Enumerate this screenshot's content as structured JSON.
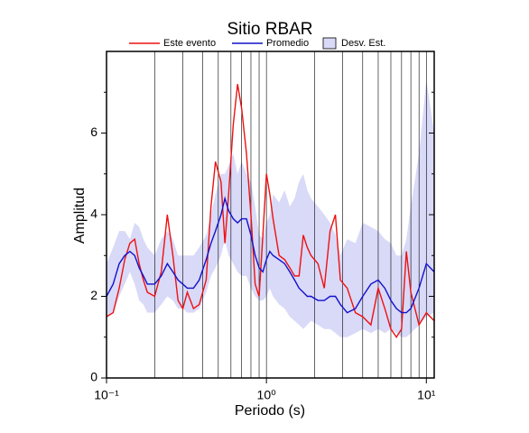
{
  "chart_data": {
    "type": "line",
    "title": "Sitio RBAR",
    "xlabel": "Periodo (s)",
    "ylabel": "Amplitud",
    "xscale": "log",
    "xlim": [
      0.1,
      11.2
    ],
    "ylim": [
      0,
      8
    ],
    "xticks": [
      {
        "value": 0.1,
        "label": "10⁻¹"
      },
      {
        "value": 1,
        "label": "10⁰"
      },
      {
        "value": 10,
        "label": "10¹"
      }
    ],
    "xgrid": [
      0.2,
      0.3,
      0.4,
      0.5,
      0.6,
      0.7,
      0.8,
      0.9,
      2,
      3,
      4,
      5,
      6,
      7,
      8,
      9
    ],
    "yticks": [
      0,
      2,
      4,
      6
    ],
    "yminorticks": [
      1,
      3,
      5,
      7
    ],
    "x": [
      0.1,
      0.11,
      0.12,
      0.13,
      0.14,
      0.15,
      0.16,
      0.17,
      0.18,
      0.2,
      0.22,
      0.24,
      0.26,
      0.28,
      0.3,
      0.32,
      0.35,
      0.38,
      0.42,
      0.45,
      0.48,
      0.52,
      0.55,
      0.58,
      0.62,
      0.66,
      0.7,
      0.75,
      0.8,
      0.85,
      0.9,
      0.95,
      1.0,
      1.05,
      1.1,
      1.2,
      1.3,
      1.4,
      1.5,
      1.6,
      1.7,
      1.8,
      1.9,
      2.1,
      2.3,
      2.5,
      2.7,
      2.9,
      3.2,
      3.6,
      4.0,
      4.5,
      5.0,
      5.5,
      6.0,
      6.5,
      7.0,
      7.5,
      8.0,
      9.0,
      10,
      11.2
    ],
    "series": [
      {
        "name": "Este evento",
        "color": "#ee1111",
        "values": [
          1.5,
          1.6,
          2.2,
          2.9,
          3.3,
          3.4,
          2.8,
          2.4,
          2.1,
          2.0,
          2.6,
          4.0,
          3.0,
          1.9,
          1.7,
          2.1,
          1.7,
          1.8,
          2.4,
          4.2,
          5.3,
          4.8,
          3.3,
          4.5,
          6.2,
          7.2,
          6.6,
          5.5,
          4.0,
          2.3,
          2.0,
          3.5,
          5.0,
          4.5,
          3.9,
          3.0,
          2.9,
          2.7,
          2.5,
          2.5,
          3.5,
          3.2,
          3.0,
          2.8,
          2.2,
          3.6,
          4.0,
          2.4,
          2.2,
          1.6,
          1.5,
          1.3,
          2.2,
          1.7,
          1.2,
          1.0,
          1.2,
          3.1,
          2.1,
          1.3,
          1.6,
          1.4
        ]
      },
      {
        "name": "Promedio",
        "color": "#1111cc",
        "values": [
          2.0,
          2.3,
          2.8,
          3.0,
          3.1,
          3.0,
          2.7,
          2.5,
          2.3,
          2.3,
          2.5,
          2.8,
          2.6,
          2.4,
          2.3,
          2.2,
          2.2,
          2.4,
          2.9,
          3.3,
          3.6,
          4.0,
          4.4,
          4.1,
          3.9,
          3.8,
          3.9,
          3.9,
          3.5,
          3.0,
          2.7,
          2.6,
          2.9,
          3.1,
          3.0,
          2.9,
          2.8,
          2.6,
          2.4,
          2.2,
          2.1,
          2.0,
          2.0,
          1.9,
          1.9,
          2.0,
          2.0,
          1.8,
          1.6,
          1.7,
          2.0,
          2.3,
          2.4,
          2.2,
          1.9,
          1.7,
          1.6,
          1.6,
          1.7,
          2.2,
          2.8,
          2.6
        ]
      },
      {
        "name": "Desv. Est.",
        "color": "#d9d9f8",
        "upper": [
          2.8,
          3.2,
          3.6,
          3.6,
          3.4,
          3.8,
          3.7,
          3.4,
          3.2,
          3.0,
          3.4,
          3.6,
          3.4,
          3.0,
          3.0,
          3.0,
          3.0,
          3.2,
          3.5,
          4.0,
          4.5,
          5.0,
          5.0,
          5.2,
          5.5,
          5.0,
          5.3,
          5.0,
          4.8,
          4.2,
          3.5,
          3.4,
          3.8,
          4.0,
          4.5,
          4.3,
          4.6,
          4.2,
          4.4,
          4.8,
          5.0,
          4.6,
          4.4,
          4.2,
          4.0,
          3.8,
          3.5,
          3.0,
          3.4,
          3.3,
          3.8,
          3.7,
          3.6,
          3.4,
          3.3,
          3.0,
          3.0,
          3.4,
          4.2,
          5.5,
          7.3,
          6.0
        ],
        "lower": [
          1.5,
          1.6,
          2.0,
          2.3,
          2.6,
          2.3,
          1.9,
          1.8,
          1.6,
          1.6,
          1.8,
          2.0,
          1.9,
          1.7,
          1.7,
          1.6,
          1.6,
          1.7,
          2.1,
          2.5,
          2.7,
          3.0,
          3.4,
          3.0,
          2.8,
          2.6,
          2.5,
          2.5,
          2.2,
          2.0,
          1.9,
          1.9,
          2.0,
          2.2,
          2.0,
          1.8,
          1.7,
          1.5,
          1.4,
          1.3,
          1.2,
          1.3,
          1.4,
          1.3,
          1.2,
          1.2,
          1.1,
          1.0,
          1.0,
          1.1,
          1.2,
          1.1,
          1.2,
          1.1,
          1.2,
          1.1,
          1.0,
          1.0,
          1.1,
          1.3,
          1.5,
          1.6
        ]
      }
    ]
  }
}
